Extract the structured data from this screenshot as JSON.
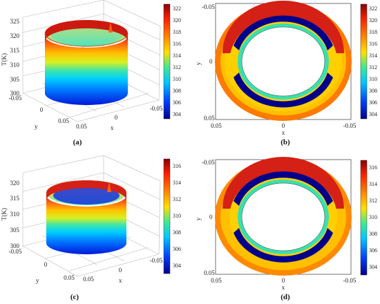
{
  "panels": {
    "a": {
      "caption": "(a)",
      "z_label": "T(K)",
      "z_ticks": [
        "325",
        "320",
        "315",
        "310",
        "305",
        "300"
      ],
      "y_label": "y",
      "y_ticks": [
        "-0.05",
        "0",
        "0.05"
      ],
      "x_label": "x",
      "x_ticks": [
        "0.05",
        "0",
        "-0.05"
      ],
      "colorbar_ticks": [
        "322",
        "320",
        "318",
        "316",
        "314",
        "312",
        "310",
        "308",
        "306",
        "304"
      ]
    },
    "b": {
      "caption": "(b)",
      "y_label": "y",
      "y_ticks": [
        "-0.05",
        "0",
        "0.05"
      ],
      "x_label": "x",
      "x_ticks": [
        "0.05",
        "0",
        "-0.05"
      ],
      "colorbar_ticks": [
        "322",
        "320",
        "318",
        "316",
        "314",
        "312",
        "310",
        "308",
        "306",
        "304"
      ]
    },
    "c": {
      "caption": "(c)",
      "z_label": "T(K)",
      "z_ticks": [
        "320",
        "315",
        "310",
        "305",
        "300"
      ],
      "y_label": "y",
      "y_ticks": [
        "-0.05",
        "0",
        "0.05"
      ],
      "x_label": "x",
      "x_ticks": [
        "0.05",
        "0",
        "-0.05"
      ],
      "colorbar_ticks": [
        "316",
        "314",
        "312",
        "310",
        "308",
        "306",
        "304"
      ]
    },
    "d": {
      "caption": "(d)",
      "y_label": "y",
      "y_ticks": [
        "-0.05",
        "0",
        "0.05"
      ],
      "x_label": "x",
      "x_ticks": [
        "0.05",
        "0",
        "-0.05"
      ],
      "colorbar_ticks": [
        "316",
        "314",
        "312",
        "310",
        "308",
        "306",
        "304"
      ]
    }
  },
  "colors": {
    "hot": "#c81e10",
    "warm": "#ffd200",
    "mid": "#33e3a0",
    "cool": "#00b7ff",
    "cold": "#00008b"
  }
}
